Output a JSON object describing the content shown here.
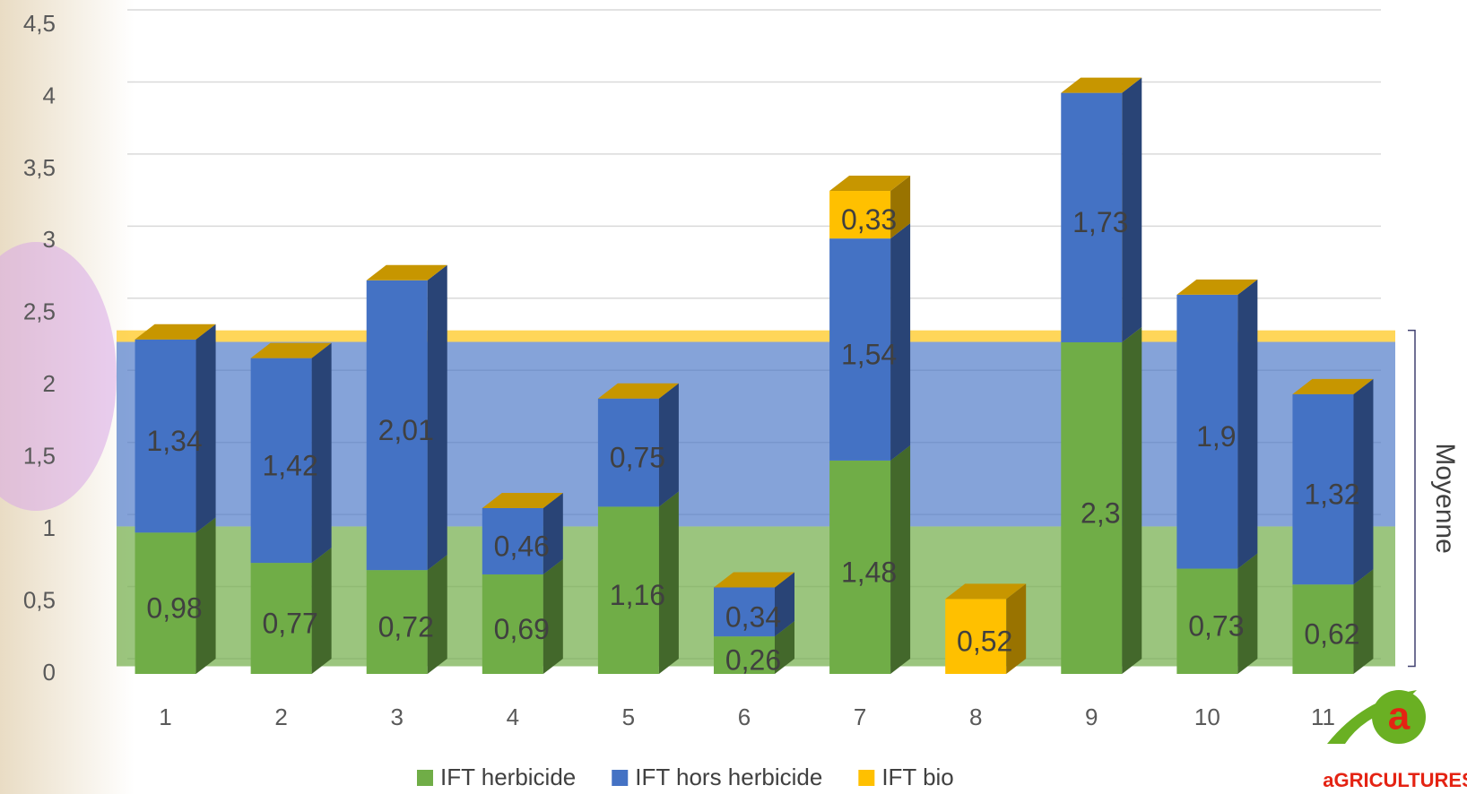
{
  "chart_data": {
    "type": "stacked-bar-3d",
    "categories": [
      "1",
      "2",
      "3",
      "4",
      "5",
      "6",
      "7",
      "8",
      "9",
      "10",
      "11"
    ],
    "series": [
      {
        "name": "IFT herbicide",
        "color": "#70ad47",
        "values": [
          0.98,
          0.77,
          0.72,
          0.69,
          1.16,
          0.26,
          1.48,
          null,
          2.3,
          0.73,
          0.62
        ],
        "value_labels": [
          "0,98",
          "0,77",
          "0,72",
          "0,69",
          "1,16",
          "0,26",
          "1,48",
          null,
          "2,3",
          "0,73",
          "0,62"
        ]
      },
      {
        "name": "IFT hors herbicide",
        "color": "#4472c4",
        "values": [
          1.34,
          1.42,
          2.01,
          0.46,
          0.75,
          0.34,
          1.54,
          null,
          1.73,
          1.9,
          1.32
        ],
        "value_labels": [
          "1,34",
          "1,42",
          "2,01",
          "0,46",
          "0,75",
          "0,34",
          "1,54",
          null,
          "1,73",
          "1,9",
          "1,32"
        ]
      },
      {
        "name": "IFT bio",
        "color": "#ffc000",
        "values": [
          null,
          null,
          null,
          null,
          null,
          null,
          0.33,
          0.52,
          null,
          null,
          null
        ],
        "value_labels": [
          null,
          null,
          null,
          null,
          null,
          null,
          "0,33",
          "0,52",
          null,
          null,
          null
        ]
      }
    ],
    "average": {
      "label": "Moyenne",
      "values": [
        0.97,
        1.28,
        0.08
      ]
    },
    "ylim": [
      0,
      4.5
    ],
    "yticks": [
      0,
      {
        "value": 0.5,
        "label": "0,5"
      },
      1,
      {
        "value": 1.5,
        "label": "1,5"
      },
      2,
      {
        "value": 2.5,
        "label": "2,5"
      },
      3,
      {
        "value": 3.5,
        "label": "3,5"
      },
      4,
      {
        "value": 4.5,
        "label": "4,5"
      }
    ],
    "grid": true,
    "legend": "bottom",
    "logo": "aGRICULTURES"
  }
}
